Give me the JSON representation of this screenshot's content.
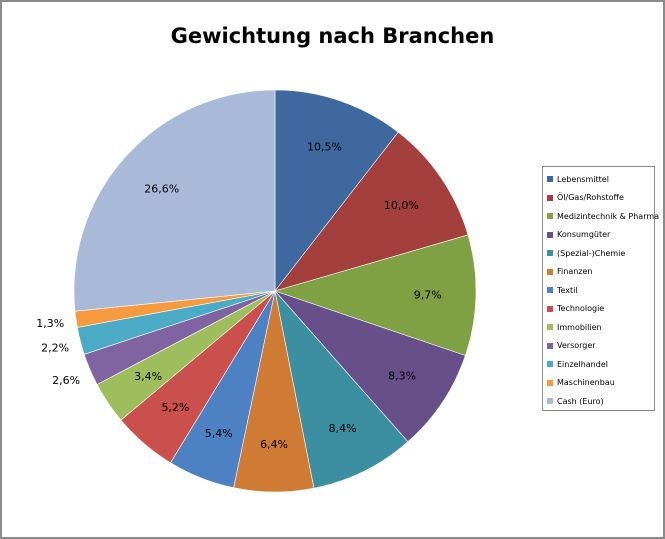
{
  "chart_data": {
    "type": "pie",
    "title": "Gewichtung nach Branchen",
    "legend_position": "right",
    "slices": [
      {
        "label": "Lebensmittel",
        "value": 10.5,
        "display": "10,5%",
        "color": "#3F689E"
      },
      {
        "label": "Öl/Gas/Rohstoffe",
        "value": 10.0,
        "display": "10,0%",
        "color": "#A33F3C"
      },
      {
        "label": "Medizintechnik & Pharma",
        "value": 9.7,
        "display": "9,7%",
        "color": "#80A044"
      },
      {
        "label": "Konsumgüter",
        "value": 8.3,
        "display": "8,3%",
        "color": "#67508A"
      },
      {
        "label": "(Spezial-)Chemie",
        "value": 8.4,
        "display": "8,4%",
        "color": "#3B8FA0"
      },
      {
        "label": "Finanzen",
        "value": 6.4,
        "display": "6,4%",
        "color": "#D07B35"
      },
      {
        "label": "Textil",
        "value": 5.4,
        "display": "5,4%",
        "color": "#4E81C4"
      },
      {
        "label": "Technologie",
        "value": 5.2,
        "display": "5,2%",
        "color": "#C9504D"
      },
      {
        "label": "Immobilien",
        "value": 3.4,
        "display": "3,4%",
        "color": "#9EBD5C"
      },
      {
        "label": "Versorger",
        "value": 2.6,
        "display": "2,6%",
        "color": "#8064A2"
      },
      {
        "label": "Einzelhandel",
        "value": 2.2,
        "display": "2,2%",
        "color": "#4BAAC6"
      },
      {
        "label": "Maschinenbau",
        "value": 1.3,
        "display": "1,3%",
        "color": "#F59A3E"
      },
      {
        "label": "Cash (Euro)",
        "value": 26.6,
        "display": "26,6%",
        "color": "#A9BAD8"
      }
    ]
  }
}
